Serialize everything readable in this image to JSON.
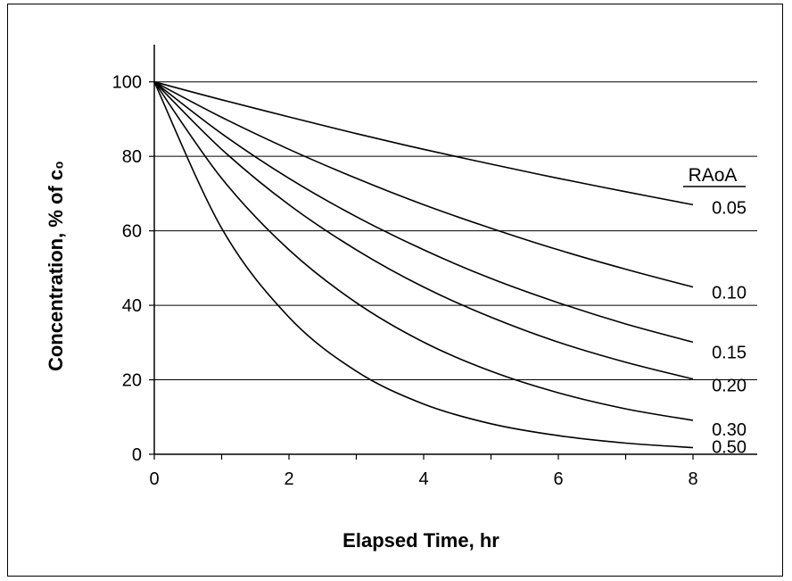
{
  "chart_data": {
    "type": "line",
    "xlabel": "Elapsed Time, hr",
    "ylabel": "Concentration, % of c₀",
    "xlim": [
      0,
      8
    ],
    "ylim": [
      0,
      110
    ],
    "xticks": [
      0,
      2,
      4,
      6,
      8
    ],
    "yticks": [
      0,
      20,
      40,
      60,
      80,
      100
    ],
    "grid": "horizontal",
    "legend_title": "RAoA",
    "series": [
      {
        "name": "0.05",
        "x": [
          0,
          1,
          2,
          3,
          4,
          5,
          6,
          7,
          8
        ],
        "values": [
          100,
          95.2,
          90.6,
          86.1,
          81.9,
          77.9,
          74.1,
          70.5,
          67.0
        ]
      },
      {
        "name": "0.10",
        "x": [
          0,
          1,
          2,
          3,
          4,
          5,
          6,
          7,
          8
        ],
        "values": [
          100,
          90.5,
          81.9,
          74.1,
          67.0,
          60.7,
          54.9,
          49.7,
          44.9
        ]
      },
      {
        "name": "0.15",
        "x": [
          0,
          1,
          2,
          3,
          4,
          5,
          6,
          7,
          8
        ],
        "values": [
          100,
          86.1,
          74.1,
          63.8,
          54.9,
          47.2,
          40.7,
          35.0,
          30.1
        ]
      },
      {
        "name": "0.20",
        "x": [
          0,
          1,
          2,
          3,
          4,
          5,
          6,
          7,
          8
        ],
        "values": [
          100,
          81.9,
          67.0,
          54.9,
          44.9,
          36.8,
          30.1,
          24.7,
          20.2
        ]
      },
      {
        "name": "0.30",
        "x": [
          0,
          1,
          2,
          3,
          4,
          5,
          6,
          7,
          8
        ],
        "values": [
          100,
          74.1,
          54.9,
          40.7,
          30.1,
          22.3,
          16.5,
          12.2,
          9.1
        ]
      },
      {
        "name": "0.50",
        "x": [
          0,
          1,
          2,
          3,
          4,
          5,
          6,
          7,
          8
        ],
        "values": [
          100,
          60.7,
          36.8,
          22.3,
          13.5,
          8.2,
          5.0,
          3.0,
          1.8
        ]
      }
    ]
  }
}
